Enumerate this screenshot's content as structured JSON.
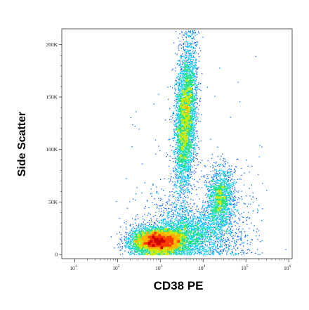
{
  "chart_data": {
    "type": "scatter",
    "subtype": "flow-cytometry-density-dot-plot",
    "title": "",
    "xlabel": "CD38 PE",
    "ylabel": "Side Scatter",
    "x_scale": "log",
    "xlim": [
      5,
      1200000
    ],
    "ylim": [
      -4000,
      215000
    ],
    "x_ticks": [
      {
        "value": 10,
        "base": "10",
        "exp": "1"
      },
      {
        "value": 100,
        "base": "10",
        "exp": "2"
      },
      {
        "value": 1000,
        "base": "10",
        "exp": "3"
      },
      {
        "value": 10000,
        "base": "10",
        "exp": "4"
      },
      {
        "value": 100000,
        "base": "10",
        "exp": "5"
      },
      {
        "value": 1000000,
        "base": "10",
        "exp": "6"
      }
    ],
    "y_ticks": [
      {
        "value": 0,
        "label": "0"
      },
      {
        "value": 50000,
        "label": "50K"
      },
      {
        "value": 100000,
        "label": "100K"
      },
      {
        "value": 150000,
        "label": "150K"
      },
      {
        "value": 200000,
        "label": "200K"
      }
    ],
    "grid": false,
    "colormap": [
      "#0000c8",
      "#0060ff",
      "#00c8ff",
      "#20e080",
      "#c8e800",
      "#ffb000",
      "#ff4000",
      "#d00000"
    ],
    "populations": [
      {
        "name": "",
        "center_x": 900,
        "center_y": 13000,
        "spread_log_x": 0.32,
        "spread_y": 6000,
        "count": 6000
      },
      {
        "name": "",
        "center_x": 3800,
        "center_y": 130000,
        "spread_log_x": 0.12,
        "spread_y": 35000,
        "count": 4200
      },
      {
        "name": "",
        "center_x": 25000,
        "center_y": 55000,
        "spread_log_x": 0.16,
        "spread_y": 14000,
        "count": 1500
      },
      {
        "name": "",
        "center_x": 6000,
        "center_y": 22000,
        "spread_log_x": 0.55,
        "spread_y": 10000,
        "count": 2200
      }
    ]
  }
}
